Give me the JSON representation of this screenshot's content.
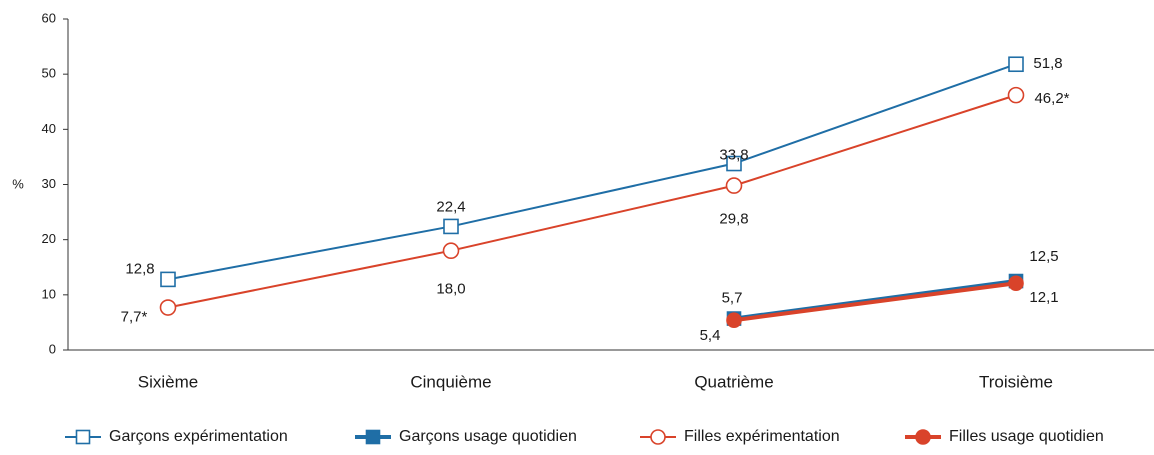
{
  "chart_data": {
    "type": "line",
    "y_label": "%",
    "categories": [
      "Sixième",
      "Cinquième",
      "Quatrième",
      "Troisième"
    ],
    "ylim": [
      0,
      60
    ],
    "yticks": [
      0,
      10,
      20,
      30,
      40,
      50,
      60
    ],
    "series": [
      {
        "name": "Garçons expérimentation",
        "color": "#1f6ea6",
        "marker": "square",
        "filled": false,
        "values": [
          12.8,
          22.4,
          33.8,
          51.8
        ],
        "value_labels": [
          "12,8",
          "22,4",
          "33,8",
          "51,8"
        ]
      },
      {
        "name": "Garçons usage quotidien",
        "color": "#1f6ea6",
        "marker": "square",
        "filled": true,
        "values": [
          null,
          null,
          5.7,
          12.5
        ],
        "value_labels": [
          null,
          null,
          "5,7",
          "12,5"
        ]
      },
      {
        "name": "Filles expérimentation",
        "color": "#d9432a",
        "marker": "circle",
        "filled": false,
        "values": [
          7.7,
          18.0,
          29.8,
          46.2
        ],
        "value_labels": [
          "7,7*",
          "18,0",
          "29,8",
          "46,2*"
        ]
      },
      {
        "name": "Filles usage quotidien",
        "color": "#d9432a",
        "marker": "circle",
        "filled": true,
        "values": [
          null,
          null,
          5.4,
          12.1
        ],
        "value_labels": [
          null,
          null,
          "5,4",
          "12,1"
        ]
      }
    ]
  }
}
